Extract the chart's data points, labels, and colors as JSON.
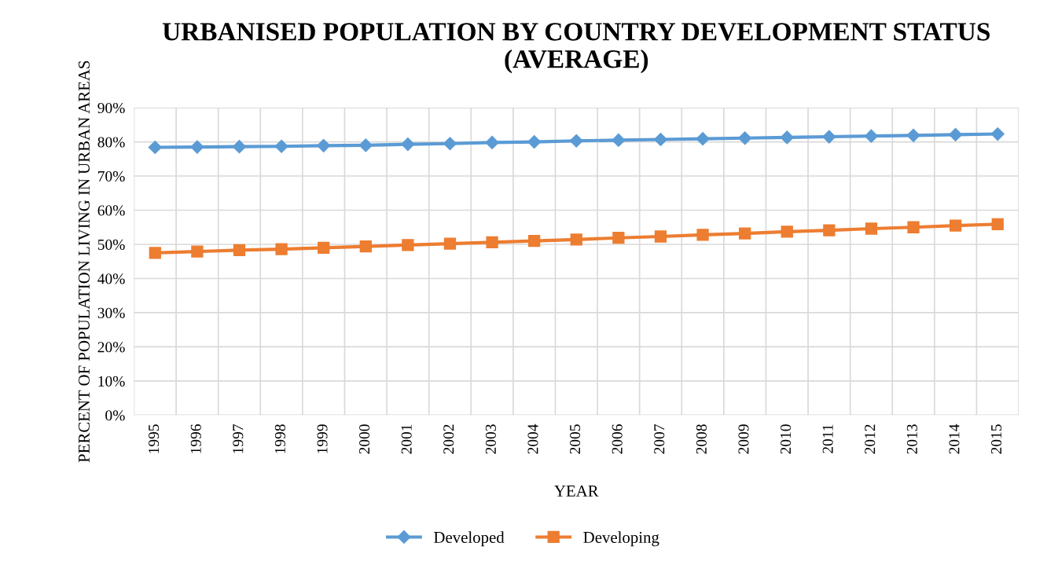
{
  "chart_data": {
    "type": "line",
    "title": "URBANISED POPULATION BY COUNTRY DEVELOPMENT STATUS (AVERAGE)",
    "xlabel": "YEAR",
    "ylabel": "PERCENT OF POPULATION LIVING IN URBAN AREAS",
    "categories": [
      "1995",
      "1996",
      "1997",
      "1998",
      "1999",
      "2000",
      "2001",
      "2002",
      "2003",
      "2004",
      "2005",
      "2006",
      "2007",
      "2008",
      "2009",
      "2010",
      "2011",
      "2012",
      "2013",
      "2014",
      "2015"
    ],
    "series": [
      {
        "name": "Developed",
        "color": "#5b9bd5",
        "marker": "diamond",
        "values": [
          78.4,
          78.5,
          78.6,
          78.7,
          78.9,
          79.0,
          79.3,
          79.5,
          79.8,
          80.0,
          80.3,
          80.5,
          80.7,
          80.9,
          81.1,
          81.3,
          81.5,
          81.7,
          81.9,
          82.1,
          82.3
        ]
      },
      {
        "name": "Developing",
        "color": "#ed7d31",
        "marker": "square",
        "values": [
          47.5,
          47.9,
          48.3,
          48.6,
          49.0,
          49.4,
          49.8,
          50.2,
          50.6,
          51.0,
          51.4,
          51.9,
          52.3,
          52.8,
          53.2,
          53.7,
          54.1,
          54.6,
          55.0,
          55.5,
          55.9
        ]
      }
    ],
    "ylim": [
      0,
      90
    ],
    "yticks": [
      {
        "value": 0,
        "label": "0%"
      },
      {
        "value": 10,
        "label": "10%"
      },
      {
        "value": 20,
        "label": "20%"
      },
      {
        "value": 30,
        "label": "30%"
      },
      {
        "value": 40,
        "label": "40%"
      },
      {
        "value": 50,
        "label": "50%"
      },
      {
        "value": 60,
        "label": "60%"
      },
      {
        "value": 70,
        "label": "70%"
      },
      {
        "value": 80,
        "label": "80%"
      },
      {
        "value": 90,
        "label": "90%"
      }
    ],
    "grid": true,
    "legend": "bottom",
    "line_style": "solid"
  }
}
